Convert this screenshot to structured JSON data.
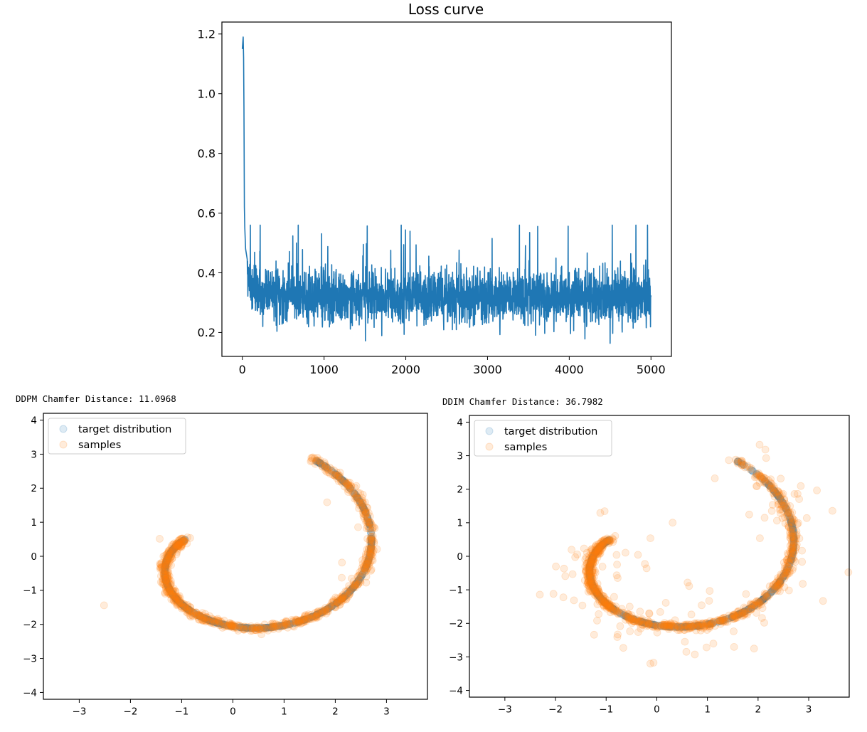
{
  "chart_data": [
    {
      "type": "line",
      "title": "Loss curve",
      "xlabel": "",
      "ylabel": "",
      "xlim": [
        -250,
        5250
      ],
      "ylim": [
        0.12,
        1.24
      ],
      "xticks": [
        0,
        1000,
        2000,
        3000,
        4000,
        5000
      ],
      "xtick_labels": [
        "0",
        "1000",
        "2000",
        "3000",
        "4000",
        "5000"
      ],
      "yticks": [
        0.2,
        0.4,
        0.6,
        0.8,
        1.0,
        1.2
      ],
      "ytick_labels": [
        "0.2",
        "0.4",
        "0.6",
        "0.8",
        "1.0",
        "1.2"
      ],
      "grid": false,
      "series": [
        {
          "color": "#1f77b4",
          "values_summary": {
            "n_steps": 5000,
            "initial": [
              1.15,
              1.19
            ],
            "plateau_mean": 0.32,
            "plateau_range": [
              0.16,
              0.56
            ]
          },
          "points": [
            [
              0,
              1.15
            ],
            [
              10,
              1.19
            ],
            [
              15,
              1.12
            ],
            [
              20,
              0.95
            ],
            [
              25,
              0.62
            ],
            [
              30,
              0.55
            ],
            [
              40,
              0.48
            ],
            [
              60,
              0.42
            ],
            [
              100,
              0.38
            ],
            [
              200,
              0.36
            ],
            [
              500,
              0.34
            ],
            [
              1000,
              0.33
            ],
            [
              2000,
              0.32
            ],
            [
              3000,
              0.32
            ],
            [
              4000,
              0.32
            ],
            [
              5000,
              0.32
            ]
          ]
        }
      ]
    },
    {
      "type": "scatter",
      "title": "DDPM Chamfer Distance: 11.0968",
      "xlim": [
        -3.7,
        3.8
      ],
      "ylim": [
        -4.2,
        4.2
      ],
      "xticks": [
        -3,
        -2,
        -1,
        0,
        1,
        2,
        3
      ],
      "xtick_labels": [
        "−3",
        "−2",
        "−1",
        "0",
        "1",
        "2",
        "3"
      ],
      "yticks": [
        -4,
        -3,
        -2,
        -1,
        0,
        1,
        2,
        3,
        4
      ],
      "ytick_labels": [
        "−4",
        "−3",
        "−2",
        "−1",
        "0",
        "1",
        "2",
        "3",
        "4"
      ],
      "legend": {
        "placement": "top-left",
        "entries": [
          "target distribution",
          "samples"
        ]
      },
      "series": [
        {
          "name": "target distribution",
          "color": "#1f77b4",
          "alpha": 0.15,
          "shape": "spiral",
          "t_range": [
            1.5,
            4.5
          ],
          "scale": 0.85
        },
        {
          "name": "samples",
          "color": "#ff7f0e",
          "alpha": 0.15,
          "shape": "spiral",
          "t_range": [
            1.5,
            4.5
          ],
          "scale": 0.85,
          "noise": 0.05,
          "outliers": 8
        }
      ]
    },
    {
      "type": "scatter",
      "title": "DDIM Chamfer Distance: 36.7982",
      "xlim": [
        -3.7,
        3.8
      ],
      "ylim": [
        -4.2,
        4.2
      ],
      "xticks": [
        -3,
        -2,
        -1,
        0,
        1,
        2,
        3
      ],
      "xtick_labels": [
        "−3",
        "−2",
        "−1",
        "0",
        "1",
        "2",
        "3"
      ],
      "yticks": [
        -4,
        -3,
        -2,
        -1,
        0,
        1,
        2,
        3,
        4
      ],
      "ytick_labels": [
        "−4",
        "−3",
        "−2",
        "−1",
        "0",
        "1",
        "2",
        "3",
        "4"
      ],
      "legend": {
        "placement": "top-left",
        "entries": [
          "target distribution",
          "samples"
        ]
      },
      "series": [
        {
          "name": "target distribution",
          "color": "#1f77b4",
          "alpha": 0.15,
          "shape": "spiral",
          "t_range": [
            1.5,
            4.5
          ],
          "scale": 0.85
        },
        {
          "name": "samples",
          "color": "#ff7f0e",
          "alpha": 0.15,
          "shape": "spiral",
          "t_range": [
            1.5,
            4.5
          ],
          "scale": 0.85,
          "noise": 0.05,
          "outliers": 110
        }
      ]
    }
  ]
}
